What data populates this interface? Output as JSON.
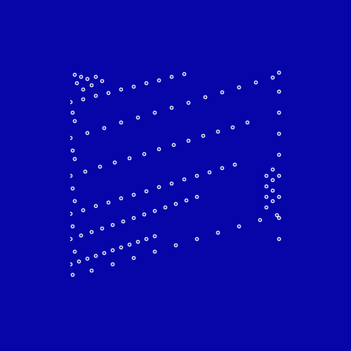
{
  "chart_data": {
    "type": "scatter",
    "color": "#ffffff",
    "marker": "o",
    "tick_labels": false,
    "grid": false,
    "xlim": [
      0,
      100
    ],
    "ylim": [
      0,
      100
    ],
    "x": [
      0,
      4,
      8,
      12,
      16,
      20,
      24,
      28,
      32,
      36,
      40,
      0,
      5,
      10,
      15,
      20,
      25,
      30,
      35,
      40,
      45,
      50,
      55,
      60,
      0,
      6,
      12,
      18,
      24,
      30,
      36,
      42,
      48,
      54,
      60,
      66,
      72,
      78,
      0,
      7,
      14,
      21,
      28,
      35,
      42,
      49,
      56,
      63,
      70,
      77,
      84,
      0,
      8,
      16,
      24,
      32,
      40,
      48,
      56,
      64,
      72,
      80,
      88,
      96,
      0,
      6,
      12,
      18,
      24,
      30,
      36,
      42,
      48,
      54,
      10,
      20,
      30,
      40,
      50,
      60,
      70,
      80,
      90,
      98,
      2,
      5,
      8,
      3,
      10,
      6,
      12,
      15,
      93,
      93,
      93,
      93,
      96,
      96,
      96,
      96,
      99,
      99,
      99,
      99,
      99,
      99,
      99,
      99,
      99,
      1,
      2,
      1,
      2,
      1,
      2,
      1,
      2,
      1
    ],
    "y": [
      8,
      9.3,
      10.6,
      12,
      13.3,
      14.6,
      16,
      17.3,
      18.6,
      20,
      21.3,
      20,
      21.7,
      23.3,
      25,
      26.7,
      28.3,
      30,
      31.7,
      33.3,
      35,
      36.7,
      38.3,
      40,
      32,
      33.8,
      35.6,
      37.4,
      39.2,
      41,
      42.8,
      44.6,
      46.4,
      48.2,
      50,
      51.8,
      53.6,
      55.4,
      50,
      52.1,
      54.2,
      56.3,
      58.4,
      60.5,
      62.6,
      64.7,
      66.8,
      68.9,
      71,
      73.1,
      75.2,
      68,
      70.4,
      72.8,
      75.2,
      77.6,
      80,
      82.4,
      84.8,
      87.2,
      89.6,
      92,
      94.4,
      96.8,
      85,
      86.5,
      88,
      89.5,
      91,
      92.5,
      94,
      95.5,
      97,
      98.5,
      5,
      8,
      11,
      14,
      17,
      20,
      23,
      26,
      29,
      31.4,
      98,
      97,
      96,
      94,
      93,
      91,
      97,
      95,
      35,
      40,
      45,
      50,
      38,
      43,
      48,
      53,
      20,
      30,
      40,
      50,
      60,
      70,
      80,
      90,
      99,
      3,
      14,
      26,
      38,
      44,
      58,
      62,
      76,
      80
    ]
  }
}
